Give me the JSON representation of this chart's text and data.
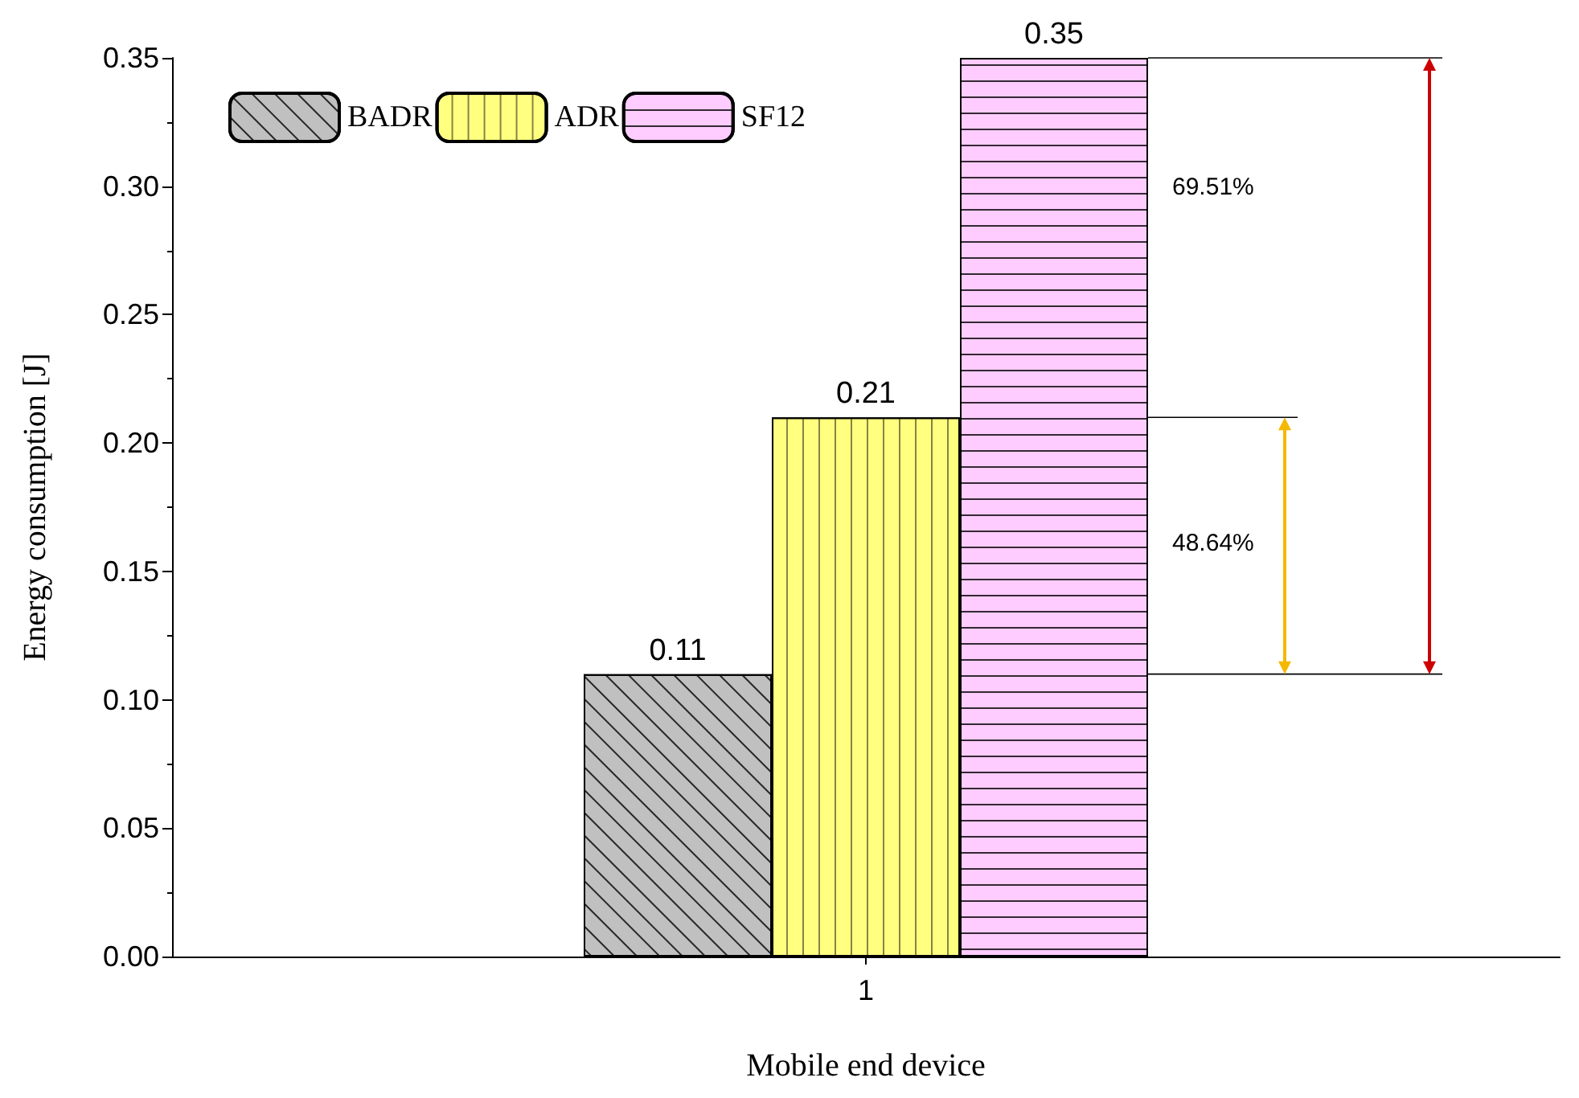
{
  "chart_data": {
    "type": "bar",
    "xlabel": "Mobile end device",
    "ylabel": "Energy consumption [J]",
    "categories": [
      "1"
    ],
    "series": [
      {
        "name": "BADR",
        "color": "#c0c0c0",
        "values": [
          0.11
        ]
      },
      {
        "name": "ADR",
        "color": "#ffff80",
        "values": [
          0.21
        ]
      },
      {
        "name": "SF12",
        "color": "#ffccff",
        "values": [
          0.35
        ]
      }
    ],
    "ylim": [
      0,
      0.35
    ],
    "yticks": [
      {
        "value": 0,
        "label": "0.00"
      },
      {
        "value": 0.05,
        "label": "0.05"
      },
      {
        "value": 0.1,
        "label": "0.10"
      },
      {
        "value": 0.15,
        "label": "0.15"
      },
      {
        "value": 0.2,
        "label": "0.20"
      },
      {
        "value": 0.25,
        "label": "0.25"
      },
      {
        "value": 0.3,
        "label": "0.30"
      },
      {
        "value": 0.35,
        "label": "0.35"
      }
    ],
    "data_labels": true,
    "legend": "top left",
    "grid": false,
    "annotations": [
      "69.51%",
      "48.64%"
    ]
  }
}
